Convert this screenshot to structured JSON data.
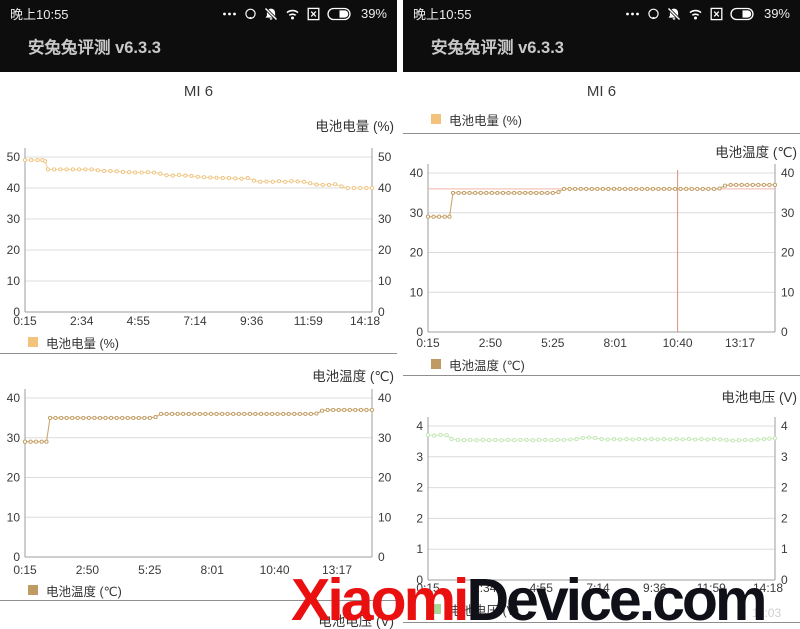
{
  "app": {
    "title": "安兔兔评测 v6.3.3",
    "device": "MI 6"
  },
  "status_bar": {
    "time": "晚上10:55",
    "battery_text": "39%",
    "icons": [
      "more-dots",
      "data-saver-ring",
      "mute-bell",
      "wifi",
      "no-sim",
      "battery"
    ]
  },
  "watermark": {
    "red": "Xiaomi",
    "dark": "Device.com",
    "red_color": "#ea1010",
    "dark_color": "#101018"
  },
  "misc": {
    "faint_time": "11:03"
  },
  "chart_data": [
    {
      "type": "line",
      "title": "电池电量 (%)",
      "legend": "电池电量 (%)",
      "line_color": "#f4d49c",
      "marker_stroke": "#eec27f",
      "legend_color": "#f3c27d",
      "ylim": [
        0,
        50
      ],
      "ytick_labels": [
        "50",
        "40",
        "30",
        "20",
        "10",
        "0"
      ],
      "xtick_labels": [
        "0:15",
        "2:34",
        "4:55",
        "7:14",
        "9:36",
        "11:59",
        "14:18"
      ],
      "points": [
        [
          0,
          49
        ],
        [
          0.018,
          49
        ],
        [
          0.036,
          49
        ],
        [
          0.05,
          49
        ],
        [
          0.058,
          48.6
        ],
        [
          0.066,
          46
        ],
        [
          0.084,
          46
        ],
        [
          0.102,
          46
        ],
        [
          0.12,
          46
        ],
        [
          0.138,
          46
        ],
        [
          0.156,
          46
        ],
        [
          0.174,
          46
        ],
        [
          0.192,
          46
        ],
        [
          0.21,
          45.7
        ],
        [
          0.228,
          45.5
        ],
        [
          0.246,
          45.5
        ],
        [
          0.264,
          45.4
        ],
        [
          0.282,
          45.2
        ],
        [
          0.3,
          45.1
        ],
        [
          0.318,
          45
        ],
        [
          0.336,
          45
        ],
        [
          0.354,
          45.1
        ],
        [
          0.372,
          45
        ],
        [
          0.39,
          44.6
        ],
        [
          0.408,
          44.1
        ],
        [
          0.426,
          44
        ],
        [
          0.444,
          44.2
        ],
        [
          0.462,
          44
        ],
        [
          0.48,
          43.9
        ],
        [
          0.498,
          43.6
        ],
        [
          0.516,
          43.5
        ],
        [
          0.534,
          43.4
        ],
        [
          0.552,
          43.3
        ],
        [
          0.57,
          43.2
        ],
        [
          0.588,
          43.2
        ],
        [
          0.606,
          43.1
        ],
        [
          0.624,
          43
        ],
        [
          0.642,
          43.2
        ],
        [
          0.66,
          42.4
        ],
        [
          0.678,
          42
        ],
        [
          0.696,
          42.1
        ],
        [
          0.714,
          42
        ],
        [
          0.732,
          42.2
        ],
        [
          0.75,
          42
        ],
        [
          0.768,
          42.2
        ],
        [
          0.786,
          42.1
        ],
        [
          0.804,
          42
        ],
        [
          0.822,
          41.5
        ],
        [
          0.84,
          41.1
        ],
        [
          0.858,
          41
        ],
        [
          0.876,
          41
        ],
        [
          0.894,
          41.2
        ],
        [
          0.912,
          40.5
        ],
        [
          0.93,
          40
        ],
        [
          0.948,
          40
        ],
        [
          0.966,
          40
        ],
        [
          0.984,
          40
        ],
        [
          1,
          40
        ]
      ]
    },
    {
      "type": "line",
      "title": "电池温度 (℃)",
      "legend": "电池温度 (℃)",
      "line_color": "#cba86e",
      "marker_stroke": "#c09a5e",
      "legend_color": "#bf9a62",
      "ylim": [
        0,
        40
      ],
      "ytick_labels": [
        "40",
        "30",
        "20",
        "10",
        "0"
      ],
      "xtick_labels": [
        "0:15",
        "2:50",
        "5:25",
        "8:01",
        "10:40",
        "13:17"
      ],
      "crosshair": {
        "x_label": "10:40",
        "value": 36,
        "v_color": "#d98c82",
        "h_color": "#f2b3aa"
      },
      "points": [
        [
          0,
          29
        ],
        [
          0.016,
          29
        ],
        [
          0.032,
          29
        ],
        [
          0.048,
          29
        ],
        [
          0.062,
          29
        ],
        [
          0.072,
          35
        ],
        [
          0.088,
          35
        ],
        [
          0.104,
          35
        ],
        [
          0.12,
          35
        ],
        [
          0.136,
          35
        ],
        [
          0.152,
          35
        ],
        [
          0.168,
          35
        ],
        [
          0.184,
          35
        ],
        [
          0.2,
          35
        ],
        [
          0.216,
          35
        ],
        [
          0.232,
          35
        ],
        [
          0.248,
          35
        ],
        [
          0.264,
          35
        ],
        [
          0.28,
          35
        ],
        [
          0.296,
          35
        ],
        [
          0.312,
          35
        ],
        [
          0.328,
          35
        ],
        [
          0.344,
          35
        ],
        [
          0.36,
          35
        ],
        [
          0.376,
          35.2
        ],
        [
          0.392,
          36
        ],
        [
          0.408,
          36
        ],
        [
          0.424,
          36
        ],
        [
          0.44,
          36
        ],
        [
          0.456,
          36
        ],
        [
          0.472,
          36
        ],
        [
          0.488,
          36
        ],
        [
          0.504,
          36
        ],
        [
          0.52,
          36
        ],
        [
          0.536,
          36
        ],
        [
          0.552,
          36
        ],
        [
          0.568,
          36
        ],
        [
          0.584,
          36
        ],
        [
          0.6,
          36
        ],
        [
          0.616,
          36
        ],
        [
          0.632,
          36
        ],
        [
          0.648,
          36
        ],
        [
          0.664,
          36
        ],
        [
          0.68,
          36
        ],
        [
          0.696,
          36
        ],
        [
          0.712,
          36
        ],
        [
          0.728,
          36
        ],
        [
          0.744,
          36
        ],
        [
          0.76,
          36
        ],
        [
          0.776,
          36
        ],
        [
          0.792,
          36
        ],
        [
          0.808,
          36
        ],
        [
          0.824,
          36
        ],
        [
          0.84,
          36.1
        ],
        [
          0.856,
          36.8
        ],
        [
          0.872,
          37
        ],
        [
          0.888,
          37
        ],
        [
          0.904,
          37
        ],
        [
          0.92,
          37
        ],
        [
          0.936,
          37
        ],
        [
          0.952,
          37
        ],
        [
          0.968,
          37
        ],
        [
          0.984,
          37
        ],
        [
          1,
          37
        ]
      ]
    },
    {
      "type": "line",
      "title": "电池电压 (V)",
      "legend": "电池电压 (V)",
      "line_color": "#cdeec2",
      "marker_stroke": "#bfe6b2",
      "legend_color": "#a6d898",
      "ylim": [
        0,
        4
      ],
      "ytick_labels": [
        "4",
        "3",
        "2",
        "2",
        "1",
        "0"
      ],
      "xtick_labels": [
        "0:15",
        "2:34",
        "4:55",
        "7:14",
        "9:36",
        "11:59",
        "14:18"
      ],
      "points": [
        [
          0,
          3.76
        ],
        [
          0.018,
          3.75
        ],
        [
          0.036,
          3.77
        ],
        [
          0.054,
          3.76
        ],
        [
          0.068,
          3.66
        ],
        [
          0.086,
          3.64
        ],
        [
          0.104,
          3.63
        ],
        [
          0.122,
          3.64
        ],
        [
          0.14,
          3.63
        ],
        [
          0.158,
          3.64
        ],
        [
          0.176,
          3.63
        ],
        [
          0.194,
          3.64
        ],
        [
          0.212,
          3.63
        ],
        [
          0.23,
          3.64
        ],
        [
          0.248,
          3.63
        ],
        [
          0.266,
          3.64
        ],
        [
          0.284,
          3.64
        ],
        [
          0.302,
          3.63
        ],
        [
          0.32,
          3.64
        ],
        [
          0.338,
          3.64
        ],
        [
          0.356,
          3.63
        ],
        [
          0.374,
          3.64
        ],
        [
          0.392,
          3.64
        ],
        [
          0.41,
          3.65
        ],
        [
          0.428,
          3.66
        ],
        [
          0.446,
          3.69
        ],
        [
          0.464,
          3.7
        ],
        [
          0.482,
          3.69
        ],
        [
          0.5,
          3.66
        ],
        [
          0.518,
          3.65
        ],
        [
          0.536,
          3.66
        ],
        [
          0.554,
          3.65
        ],
        [
          0.572,
          3.66
        ],
        [
          0.59,
          3.65
        ],
        [
          0.608,
          3.66
        ],
        [
          0.626,
          3.65
        ],
        [
          0.644,
          3.66
        ],
        [
          0.662,
          3.65
        ],
        [
          0.68,
          3.66
        ],
        [
          0.698,
          3.65
        ],
        [
          0.716,
          3.66
        ],
        [
          0.734,
          3.65
        ],
        [
          0.752,
          3.66
        ],
        [
          0.77,
          3.65
        ],
        [
          0.788,
          3.66
        ],
        [
          0.806,
          3.65
        ],
        [
          0.824,
          3.66
        ],
        [
          0.842,
          3.65
        ],
        [
          0.86,
          3.64
        ],
        [
          0.878,
          3.62
        ],
        [
          0.896,
          3.63
        ],
        [
          0.914,
          3.64
        ],
        [
          0.932,
          3.63
        ],
        [
          0.95,
          3.65
        ],
        [
          0.968,
          3.66
        ],
        [
          0.984,
          3.67
        ],
        [
          1,
          3.68
        ]
      ]
    }
  ]
}
